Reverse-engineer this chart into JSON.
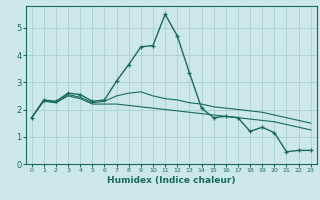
{
  "title": "",
  "xlabel": "Humidex (Indice chaleur)",
  "ylabel": "",
  "bg_color": "#cce8e8",
  "line_color": "#1a6b5a",
  "grid_color": "#aad0d0",
  "xlim": [
    -0.5,
    23.5
  ],
  "ylim": [
    0,
    5.8
  ],
  "yticks": [
    0,
    1,
    2,
    3,
    4,
    5
  ],
  "xticks": [
    0,
    1,
    2,
    3,
    4,
    5,
    6,
    7,
    8,
    9,
    10,
    11,
    12,
    13,
    14,
    15,
    16,
    17,
    18,
    19,
    20,
    21,
    22,
    23
  ],
  "series1_x": [
    0,
    1,
    2,
    3,
    4,
    5,
    6,
    7,
    8,
    9,
    10,
    11,
    12,
    13,
    14,
    15,
    16,
    17,
    18,
    19,
    20,
    21,
    22,
    23
  ],
  "series1_y": [
    1.7,
    2.35,
    2.3,
    2.6,
    2.55,
    2.3,
    2.35,
    3.05,
    3.65,
    4.3,
    4.35,
    5.5,
    4.7,
    3.35,
    2.05,
    1.7,
    1.75,
    1.7,
    1.2,
    1.35,
    1.15,
    0.45,
    0.5,
    0.5
  ],
  "series2_x": [
    0,
    1,
    2,
    3,
    4,
    5,
    6,
    7,
    8,
    9,
    10,
    11,
    12,
    13,
    14,
    15,
    16,
    17,
    18,
    19,
    20,
    21,
    22,
    23
  ],
  "series2_y": [
    1.7,
    2.35,
    2.25,
    2.55,
    2.45,
    2.25,
    2.3,
    2.5,
    2.6,
    2.65,
    2.5,
    2.4,
    2.35,
    2.25,
    2.2,
    2.1,
    2.05,
    2.0,
    1.95,
    1.9,
    1.8,
    1.7,
    1.6,
    1.5
  ],
  "series3_x": [
    0,
    1,
    2,
    3,
    4,
    5,
    6,
    7,
    8,
    9,
    10,
    11,
    12,
    13,
    14,
    15,
    16,
    17,
    18,
    19,
    20,
    21,
    22,
    23
  ],
  "series3_y": [
    1.7,
    2.3,
    2.25,
    2.5,
    2.4,
    2.2,
    2.2,
    2.2,
    2.15,
    2.1,
    2.05,
    2.0,
    1.95,
    1.9,
    1.85,
    1.8,
    1.75,
    1.7,
    1.65,
    1.6,
    1.55,
    1.45,
    1.35,
    1.25
  ]
}
